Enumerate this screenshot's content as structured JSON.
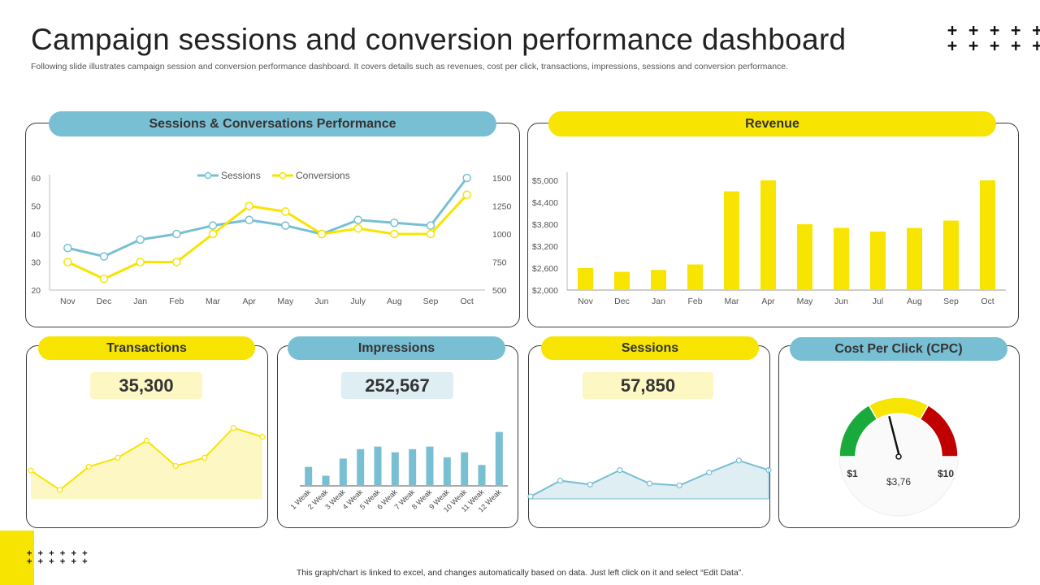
{
  "header": {
    "title": "Campaign sessions and conversion performance dashboard",
    "subtitle": "Following slide illustrates campaign session and conversion performance dashboard. It covers details such as revenues, cost per click, transactions, impressions, sessions and conversion performance."
  },
  "decor": {
    "plus_rows": "+ + + + + +\n+ + + + + +",
    "plus_small": "+ + + + + +\n+ + + + + +"
  },
  "colors": {
    "yellow": "#f7e400",
    "blue": "#79bfd3",
    "kpi_yellow_bg": "#fdf7c4",
    "kpi_blue_bg": "#dfeef3",
    "gauge_green": "#1aaa3c",
    "gauge_yellow": "#f7e400",
    "gauge_red": "#c00000"
  },
  "panels": {
    "sessions_conversions": {
      "title": "Sessions & Conversations Performance"
    },
    "revenue": {
      "title": "Revenue"
    },
    "transactions": {
      "title": "Transactions",
      "value": "35,300"
    },
    "impressions": {
      "title": "Impressions",
      "value": "252,567"
    },
    "sessions": {
      "title": "Sessions",
      "value": "57,850"
    },
    "cpc": {
      "title": "Cost Per Click (CPC)",
      "min_label": "$1",
      "max_label": "$10",
      "value_label": "$3,76"
    }
  },
  "chart_data": [
    {
      "id": "sessions_conversions",
      "type": "line",
      "title": "Sessions & Conversations Performance",
      "categories": [
        "Nov",
        "Dec",
        "Jan",
        "Feb",
        "Mar",
        "Apr",
        "May",
        "Jun",
        "July",
        "Aug",
        "Sep",
        "Oct"
      ],
      "series": [
        {
          "name": "Sessions",
          "axis": "left",
          "color": "#79bfd3",
          "values": [
            35,
            32,
            38,
            40,
            43,
            45,
            43,
            40,
            45,
            44,
            43,
            60
          ]
        },
        {
          "name": "Conversions",
          "axis": "right",
          "color": "#f7e400",
          "values": [
            750,
            600,
            750,
            750,
            1000,
            1250,
            1200,
            1000,
            1050,
            1000,
            1000,
            1350
          ]
        }
      ],
      "y_left": {
        "min": 20,
        "max": 60,
        "ticks": [
          "20",
          "30",
          "40",
          "50",
          "60"
        ]
      },
      "y_right": {
        "min": 500,
        "max": 1500,
        "ticks": [
          "500",
          "750",
          "1000",
          "1250",
          "1500"
        ]
      },
      "legend": "top-center"
    },
    {
      "id": "revenue",
      "type": "bar",
      "title": "Revenue",
      "categories": [
        "Nov",
        "Dec",
        "Jan",
        "Feb",
        "Mar",
        "Apr",
        "May",
        "Jun",
        "Jul",
        "Aug",
        "Sep",
        "Oct"
      ],
      "values": [
        2600,
        2500,
        2550,
        2700,
        4700,
        5000,
        3800,
        3700,
        3600,
        3700,
        3900,
        5000
      ],
      "ylim": [
        2000,
        5300
      ],
      "ticks": [
        "$2,000",
        "$2,600",
        "$3,200",
        "$3,800",
        "$4,400",
        "$5,000"
      ],
      "tick_values": [
        2000,
        2600,
        3200,
        3800,
        4400,
        5000
      ],
      "color": "#f7e400"
    },
    {
      "id": "transactions",
      "type": "area",
      "values": [
        38,
        12,
        43,
        55,
        78,
        44,
        55,
        95,
        83
      ],
      "ylim": [
        0,
        100
      ],
      "color": "#f7e400"
    },
    {
      "id": "impressions",
      "type": "bar",
      "categories": [
        "1 Weak",
        "2 Weak",
        "3 Weak",
        "4 Weak",
        "5 Weak",
        "6 Weak",
        "7 Weak",
        "8 Weak",
        "9 Weak",
        "10 Weak",
        "11 Weak",
        "12 Weak"
      ],
      "values": [
        30,
        16,
        43,
        58,
        62,
        53,
        58,
        62,
        45,
        53,
        33,
        85
      ],
      "ylim": [
        0,
        100
      ],
      "color": "#79bfd3"
    },
    {
      "id": "sessions",
      "type": "area",
      "values": [
        5,
        38,
        30,
        60,
        32,
        28,
        55,
        80,
        60
      ],
      "ylim": [
        0,
        100
      ],
      "color": "#79bfd3"
    },
    {
      "id": "cpc",
      "type": "gauge",
      "min": 1,
      "max": 10,
      "value": 3.76,
      "segments": [
        {
          "name": "low",
          "color": "#1aaa3c",
          "from": 0,
          "to": 0.3333
        },
        {
          "name": "mid",
          "color": "#f7e400",
          "from": 0.3333,
          "to": 0.6667
        },
        {
          "name": "high",
          "color": "#c00000",
          "from": 0.6667,
          "to": 1
        }
      ]
    }
  ],
  "footer": {
    "note": "This graph/chart is linked to excel, and changes automatically based on data. Just left click on it and select “Edit Data”."
  }
}
